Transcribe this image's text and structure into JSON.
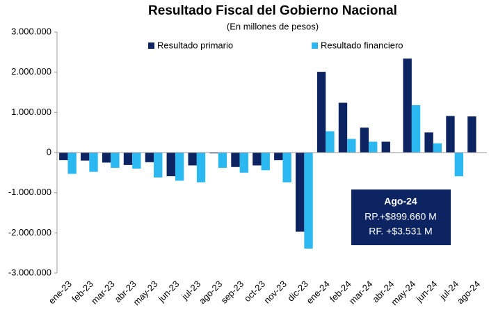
{
  "chart_data": {
    "type": "bar",
    "title": "Resultado Fiscal del Gobierno Nacional",
    "subtitle": "(En millones de pesos)",
    "categories": [
      "ene-23",
      "feb-23",
      "mar-23",
      "abr-23",
      "may-23",
      "jun-23",
      "jul-23",
      "ago-23",
      "sep-23",
      "oct-23",
      "nov-23",
      "dic-23",
      "ene-24",
      "feb-24",
      "mar-24",
      "abr-24",
      "may-24",
      "jun-24",
      "jul-24",
      "ago-24"
    ],
    "series": [
      {
        "name": "Resultado primario",
        "color": "#0d2463",
        "values": [
          -190000,
          -200000,
          -250000,
          -310000,
          -240000,
          -590000,
          -320000,
          -20000,
          -360000,
          -320000,
          -190000,
          -1970000,
          2010000,
          1240000,
          620000,
          270000,
          2340000,
          500000,
          910000,
          899660
        ]
      },
      {
        "name": "Resultado financiero",
        "color": "#2bb8f0",
        "values": [
          -530000,
          -480000,
          -380000,
          -400000,
          -620000,
          -700000,
          -740000,
          -380000,
          -500000,
          -440000,
          -740000,
          -2390000,
          530000,
          340000,
          270000,
          -10000,
          1180000,
          230000,
          -590000,
          3531
        ]
      }
    ],
    "ylim": [
      -3000000,
      3000000
    ],
    "yticks": [
      {
        "value": -3000000,
        "label": "-3.000.000"
      },
      {
        "value": -2000000,
        "label": "-2.000.000"
      },
      {
        "value": -1000000,
        "label": "-1.000.000"
      },
      0,
      {
        "value": 1000000,
        "label": "1.000.000"
      },
      {
        "value": 2000000,
        "label": "2.000.000"
      },
      {
        "value": 3000000,
        "label": "3.000.000"
      }
    ],
    "legend": "top",
    "annotations": [
      "Ago-24",
      "RP.+$899.660 M",
      "RF. +$3.531 M"
    ]
  }
}
